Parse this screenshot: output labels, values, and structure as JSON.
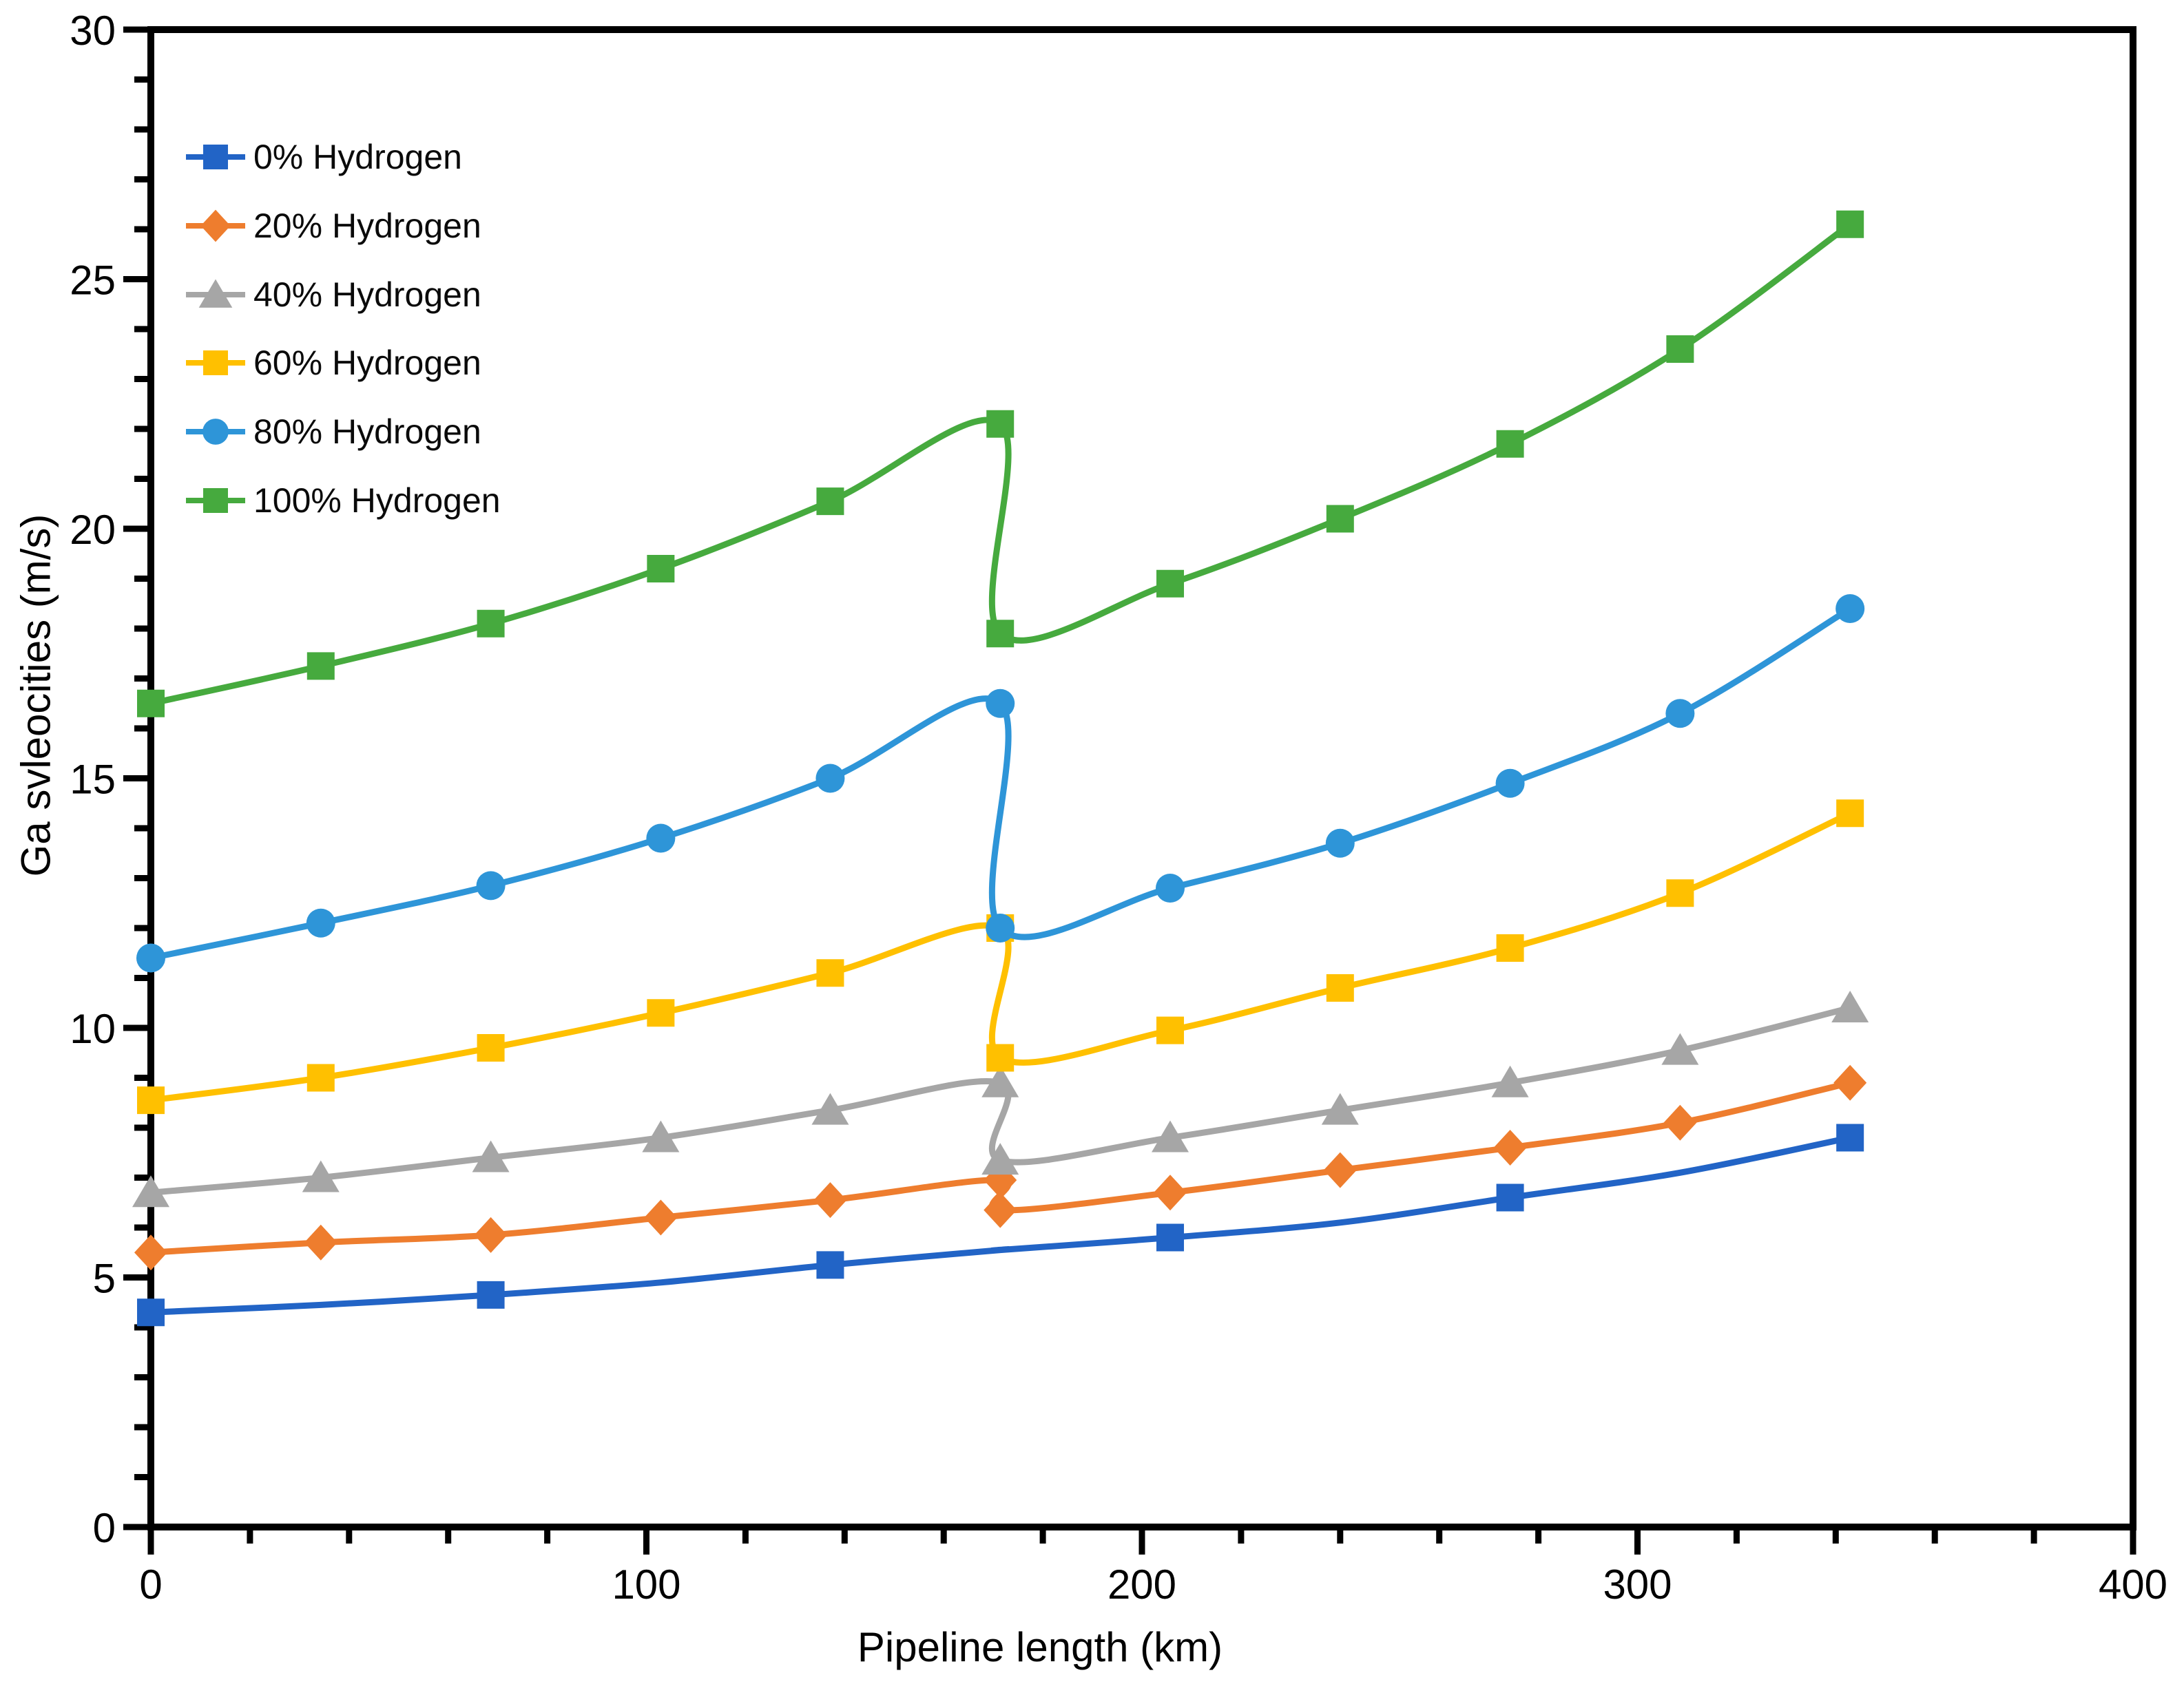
{
  "page": {
    "background": "#FFFFFF"
  },
  "chart_data": {
    "type": "line",
    "title": "",
    "xlabel": "Pipeline length (km)",
    "ylabel": "Ga svleocities (m/s)",
    "xlim": [
      0,
      400
    ],
    "ylim": [
      0,
      30
    ],
    "x_ticks": [
      0,
      100,
      200,
      300,
      400
    ],
    "y_ticks": [
      0,
      5,
      10,
      15,
      20,
      25,
      30
    ],
    "x_minor_step": 20,
    "y_minor_step": 1,
    "grid": "off",
    "legend_position": "top-left-inside",
    "x_units": "km",
    "y_units": "m/s",
    "x": [
      0,
      34.3,
      68.6,
      102.9,
      137.1,
      171.4,
      171.4,
      205.7,
      240,
      274.3,
      308.6,
      342.9
    ],
    "discontinuity_x": 171.4,
    "series": [
      {
        "name": "0% Hydrogen",
        "color": "#2264C6",
        "marker": "square",
        "values": [
          4.3,
          4.45,
          4.65,
          4.9,
          5.25,
          5.55,
          5.55,
          5.8,
          6.1,
          6.6,
          7.1,
          7.8
        ],
        "marker_indices": [
          0,
          2,
          4,
          7,
          9,
          11
        ]
      },
      {
        "name": "20% Hydrogen",
        "color": "#EE7D2E",
        "marker": "diamond",
        "values": [
          5.5,
          5.7,
          5.85,
          6.2,
          6.55,
          6.95,
          6.35,
          6.7,
          7.15,
          7.6,
          8.1,
          8.9
        ],
        "marker_indices": [
          0,
          1,
          2,
          3,
          4,
          5,
          6,
          7,
          8,
          9,
          10,
          11
        ]
      },
      {
        "name": "40% Hydrogen",
        "color": "#A6A6A6",
        "marker": "triangle",
        "values": [
          6.7,
          7.0,
          7.4,
          7.8,
          8.35,
          8.9,
          7.35,
          7.8,
          8.35,
          8.9,
          9.55,
          10.4
        ],
        "marker_indices": [
          0,
          1,
          2,
          3,
          4,
          5,
          6,
          7,
          8,
          9,
          10,
          11
        ]
      },
      {
        "name": "60% Hydrogen",
        "color": "#FFC000",
        "marker": "square",
        "values": [
          8.55,
          9.0,
          9.6,
          10.3,
          11.1,
          12.0,
          9.4,
          9.95,
          10.8,
          11.6,
          12.7,
          14.3
        ],
        "marker_indices": [
          0,
          1,
          2,
          3,
          4,
          5,
          6,
          7,
          8,
          9,
          10,
          11
        ]
      },
      {
        "name": "80% Hydrogen",
        "color": "#2E95D8",
        "marker": "circle",
        "values": [
          11.4,
          12.1,
          12.85,
          13.8,
          15.0,
          16.5,
          12.0,
          12.8,
          13.7,
          14.9,
          16.3,
          18.4
        ],
        "marker_indices": [
          0,
          1,
          2,
          3,
          4,
          5,
          6,
          7,
          8,
          9,
          10,
          11
        ]
      },
      {
        "name": "100% Hydrogen",
        "color": "#46AA3E",
        "marker": "square",
        "values": [
          16.5,
          17.25,
          18.1,
          19.2,
          20.55,
          22.1,
          17.9,
          18.9,
          20.2,
          21.7,
          23.6,
          26.1
        ],
        "marker_indices": [
          0,
          1,
          2,
          3,
          4,
          5,
          6,
          7,
          8,
          9,
          10,
          11
        ]
      }
    ]
  }
}
